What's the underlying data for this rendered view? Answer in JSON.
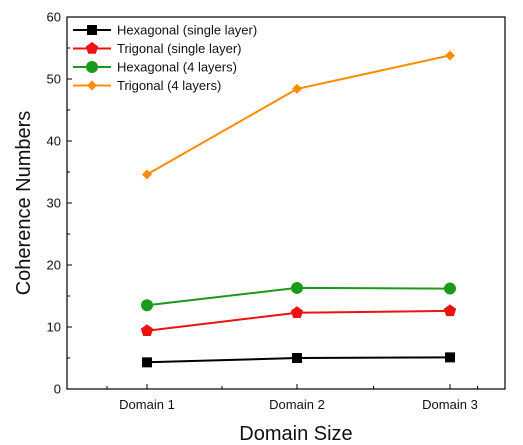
{
  "chart_data": {
    "type": "line",
    "xlabel": "Domain Size",
    "ylabel": "Coherence Numbers",
    "categories": [
      "Domain 1",
      "Domain 2",
      "Domain 3"
    ],
    "ylim": [
      0,
      60
    ],
    "yticks": [
      0,
      10,
      20,
      30,
      40,
      50,
      60
    ],
    "grid": false,
    "legend_position": "top-left",
    "series": [
      {
        "name": "Hexagonal (single layer)",
        "color": "#000000",
        "marker": "square",
        "values": [
          4.3,
          5.0,
          5.1
        ]
      },
      {
        "name": "Trigonal (single layer)",
        "color": "#ee1111",
        "marker": "pentagon",
        "values": [
          9.4,
          12.3,
          12.6
        ]
      },
      {
        "name": "Hexagonal (4 layers)",
        "color": "#1a9a1a",
        "marker": "circle",
        "values": [
          13.5,
          16.3,
          16.2
        ]
      },
      {
        "name": "Trigonal (4 layers)",
        "color": "#ff8c00",
        "marker": "diamond",
        "values": [
          34.6,
          48.4,
          53.8
        ]
      }
    ]
  }
}
